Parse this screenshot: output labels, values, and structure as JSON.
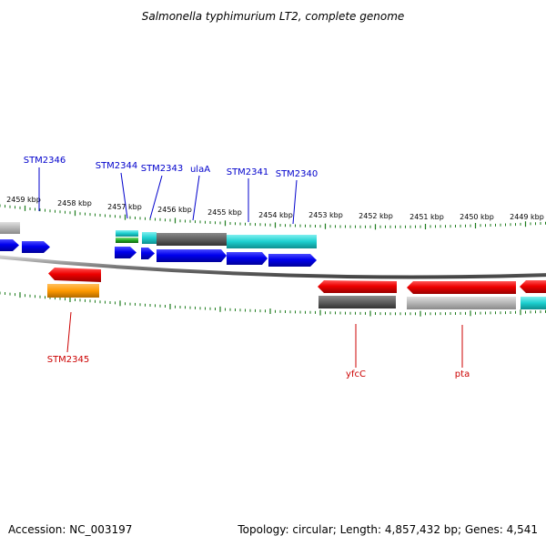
{
  "title": "Salmonella typhimurium LT2, complete genome",
  "footer": {
    "accession": "Accession: NC_003197",
    "topology": "Topology: circular; Length: 4,857,432 bp; Genes: 4,541"
  },
  "colors": {
    "forward_label": "#0000cc",
    "reverse_label": "#cc0000",
    "tick": "#1a7a1a",
    "backbone": "#808080"
  },
  "scale_labels": [
    "2459 kbp",
    "2458 kbp",
    "2457 kbp",
    "2456 kbp",
    "2455 kbp",
    "2454 kbp",
    "2453 kbp",
    "2452 kbp",
    "2451 kbp",
    "2450 kbp",
    "2449 kbp"
  ],
  "gene_labels_forward": [
    "STM2346",
    "STM2344",
    "STM2343",
    "ulaA",
    "STM2341",
    "STM2340"
  ],
  "gene_labels_reverse": [
    "STM2345",
    "yfcC",
    "pta"
  ]
}
